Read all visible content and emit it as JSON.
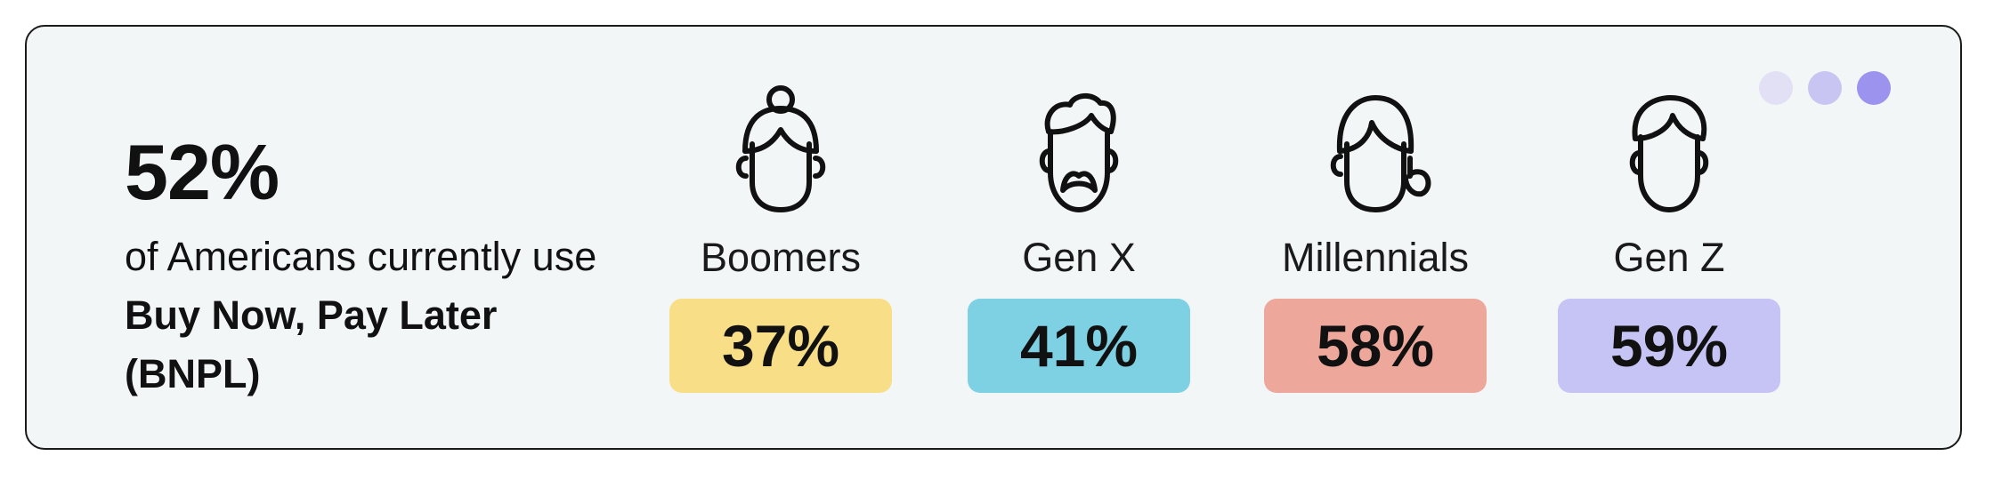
{
  "summary": {
    "stat": "52%",
    "desc_before": "of Americans currently use",
    "desc_bold": "Buy Now, Pay Later (BNPL)"
  },
  "pager_dots": [
    {
      "color": "#e1e0f5"
    },
    {
      "color": "#c9c5f3"
    },
    {
      "color": "#9b93ee"
    }
  ],
  "groups": [
    {
      "icon": "boomer-woman-icon",
      "label": "Boomers",
      "value": "37%",
      "color": "#f8de86"
    },
    {
      "icon": "genx-man-icon",
      "label": "Gen X",
      "value": "41%",
      "color": "#7ed0e3"
    },
    {
      "icon": "millennial-woman-icon",
      "label": "Millennials",
      "value": "58%",
      "color": "#eda79b"
    },
    {
      "icon": "genz-person-icon",
      "label": "Gen Z",
      "value": "59%",
      "color": "#c6c3f5"
    }
  ]
}
